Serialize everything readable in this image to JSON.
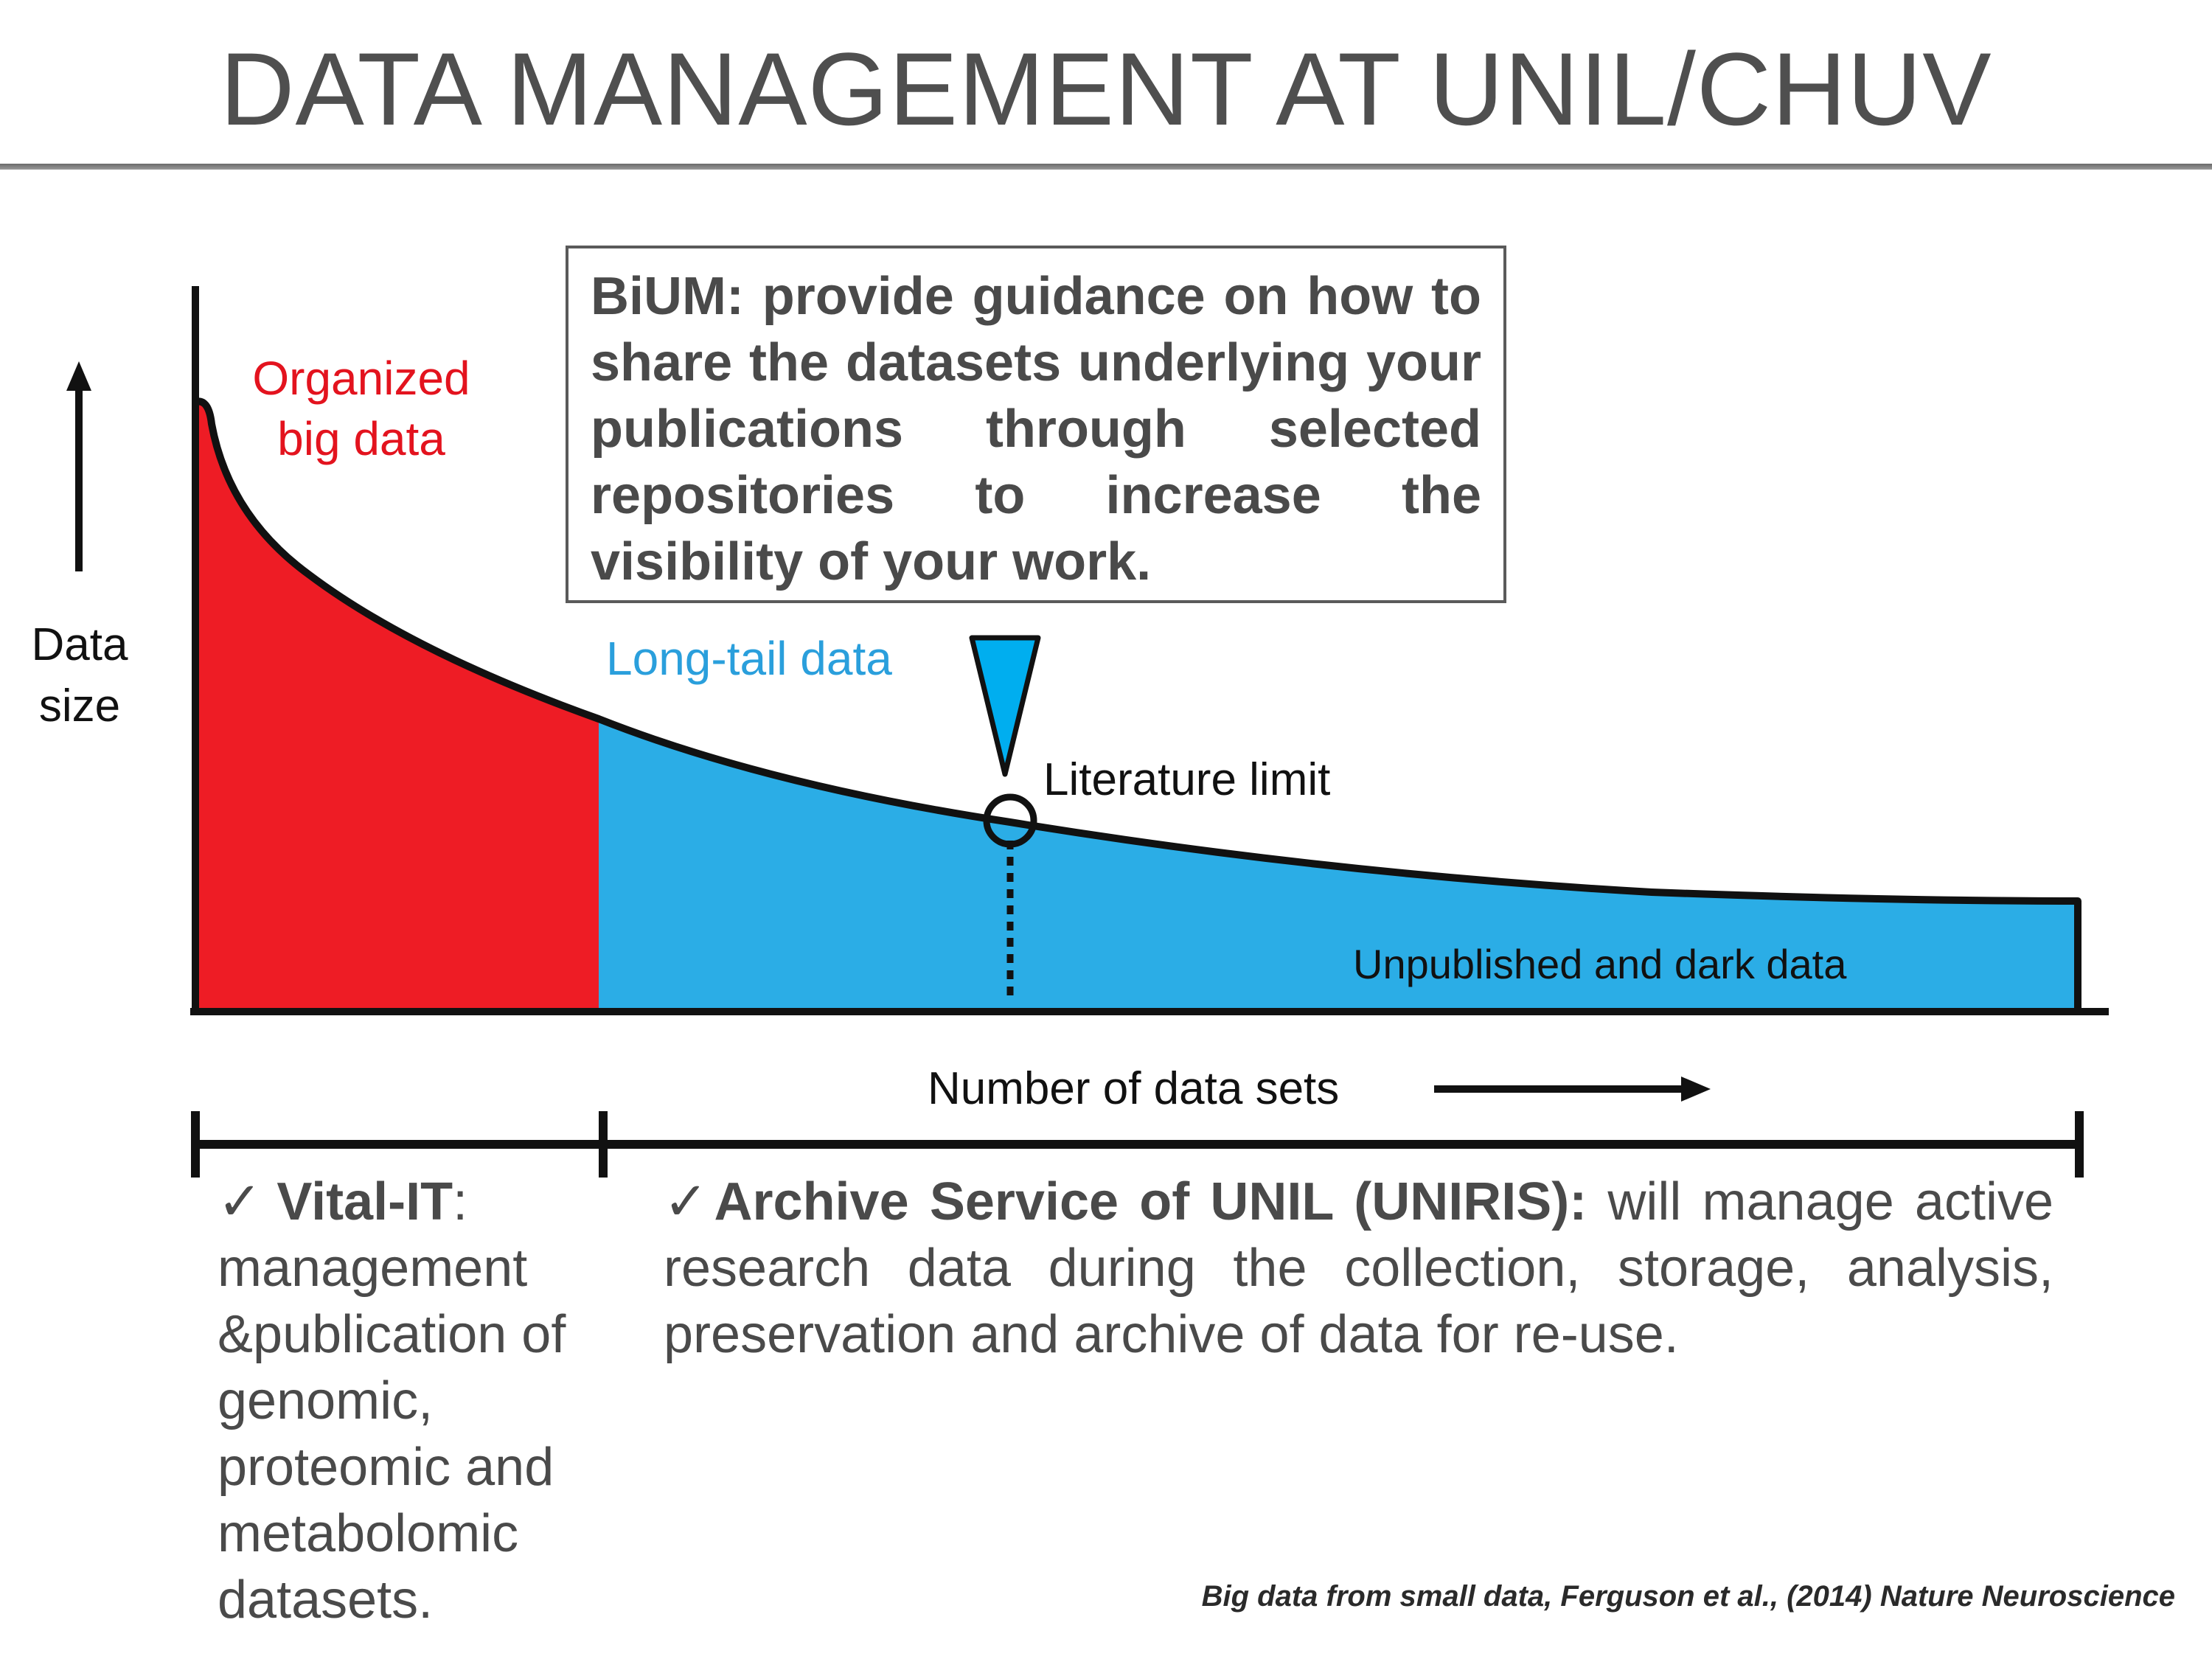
{
  "slide": {
    "title": "DATA MANAGEMENT AT UNIL/CHUV",
    "citation": "Big data from small data, Ferguson et al., (2014) Nature Neuroscience"
  },
  "diagram": {
    "y_axis_label_line1": "Data",
    "y_axis_label_line2": "size",
    "x_axis_label": "Number of data sets",
    "region_red_label_line1": "Organized",
    "region_red_label_line2": "big data",
    "region_blue_label": "Long-tail data",
    "marker_label": "Literature limit",
    "tail_label": "Unpublished and dark data",
    "colors": {
      "red_region": "#ee1c25",
      "blue_region": "#2bade6",
      "red_text": "#e3131e",
      "blue_text": "#2a9fdc",
      "pointer": "#00aeef"
    }
  },
  "bium_box": {
    "text": "BiUM: provide guidance on how to share the datasets underlying your publications through selected repositories to increase the visibility of your work."
  },
  "left_column": {
    "check": "✓ ",
    "heading": "Vital-IT",
    "rest": ": management &publication of genomic, proteomic and metabolomic datasets."
  },
  "right_column": {
    "check": "✓",
    "heading": "Archive Service of UNIL (UNIRIS):",
    "rest": " will manage active research data during the collection, storage, analysis, preservation and archive of data for re-use."
  }
}
